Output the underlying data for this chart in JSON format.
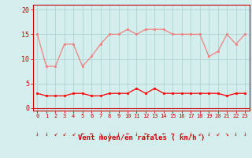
{
  "x": [
    0,
    1,
    2,
    3,
    4,
    5,
    6,
    7,
    8,
    9,
    10,
    11,
    12,
    13,
    14,
    15,
    16,
    17,
    18,
    19,
    20,
    21,
    22,
    23
  ],
  "rafales": [
    15,
    8.5,
    8.5,
    13,
    13,
    8.5,
    10.5,
    13,
    15,
    15,
    16,
    15,
    16,
    16,
    16,
    15,
    15,
    15,
    15,
    10.5,
    11.5,
    15,
    13,
    15
  ],
  "moyen": [
    3,
    2.5,
    2.5,
    2.5,
    3,
    3,
    2.5,
    2.5,
    3,
    3,
    3,
    4,
    3,
    4,
    3,
    3,
    3,
    3,
    3,
    3,
    3,
    2.5,
    3,
    3
  ],
  "line_color_rafales": "#f08080",
  "line_color_moyen": "#ff0000",
  "bg_color": "#d4eeee",
  "grid_color": "#aed4d4",
  "spine_color": "#cc0000",
  "tick_color": "#cc0000",
  "ylabel_ticks": [
    0,
    5,
    10,
    15,
    20
  ],
  "xlabel": "Vent moyen/en rafales ( km/h )",
  "ylim": [
    -0.5,
    21
  ],
  "xlim": [
    -0.5,
    23.5
  ],
  "arrows": [
    "↓",
    "↓",
    "↙",
    "↙",
    "↙",
    "←",
    "←",
    "↘",
    "↓",
    "↓",
    "←",
    "↓",
    "←",
    "↙",
    "←",
    "←",
    "←",
    "↓",
    "↙",
    "↓",
    "↙",
    "↘",
    "↓",
    "↓"
  ]
}
